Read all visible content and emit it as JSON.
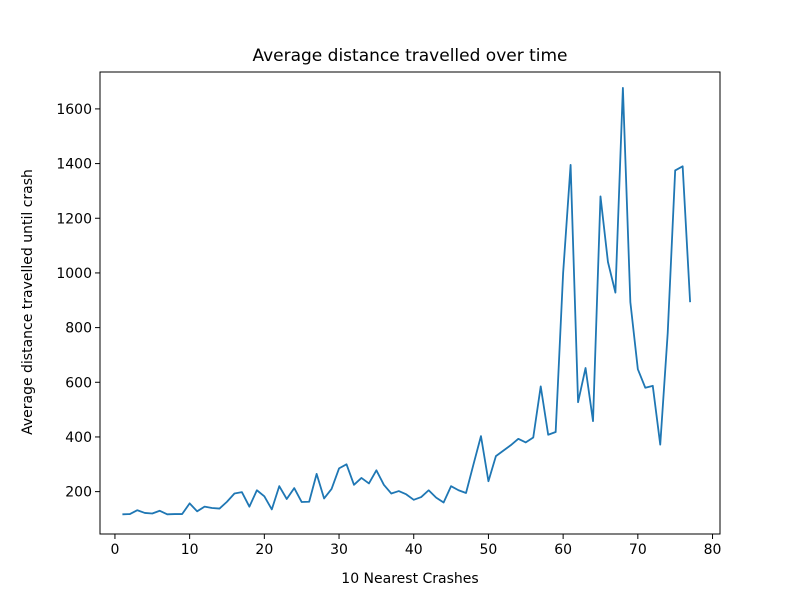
{
  "chart_data": {
    "type": "line",
    "title": "Average distance travelled over time",
    "xlabel": "10 Nearest Crashes",
    "ylabel": "Average distance travelled until crash",
    "xlim": [
      -2,
      81
    ],
    "ylim": [
      45,
      1735
    ],
    "xticks": [
      0,
      10,
      20,
      30,
      40,
      50,
      60,
      70,
      80
    ],
    "yticks": [
      200,
      400,
      600,
      800,
      1000,
      1200,
      1400,
      1600
    ],
    "grid": false,
    "legend": "none",
    "series": [
      {
        "color": "#1f77b4",
        "x": [
          1,
          2,
          3,
          4,
          5,
          6,
          7,
          8,
          9,
          10,
          11,
          12,
          13,
          14,
          15,
          16,
          17,
          18,
          19,
          20,
          21,
          22,
          23,
          24,
          25,
          26,
          27,
          28,
          29,
          30,
          31,
          32,
          33,
          34,
          35,
          36,
          37,
          38,
          39,
          40,
          41,
          42,
          43,
          44,
          45,
          46,
          47,
          48,
          49,
          50,
          51,
          52,
          53,
          54,
          55,
          56,
          57,
          58,
          59,
          60,
          61,
          62,
          63,
          64,
          65,
          66,
          67,
          68,
          69,
          70,
          71,
          72,
          73,
          74,
          75,
          76,
          77
        ],
        "y": [
          117,
          118,
          132,
          122,
          120,
          130,
          117,
          118,
          118,
          157,
          128,
          145,
          140,
          138,
          163,
          193,
          198,
          145,
          205,
          183,
          135,
          220,
          173,
          213,
          162,
          163,
          265,
          175,
          210,
          285,
          300,
          225,
          250,
          230,
          278,
          225,
          193,
          202,
          190,
          170,
          180,
          205,
          178,
          160,
          220,
          205,
          195,
          300,
          403,
          238,
          330,
          350,
          370,
          393,
          380,
          398,
          585,
          408,
          418,
          1000,
          1395,
          527,
          652,
          458,
          1280,
          1040,
          928,
          1677,
          893,
          648,
          580,
          587,
          372,
          780,
          1375,
          1390,
          893
        ]
      }
    ]
  }
}
